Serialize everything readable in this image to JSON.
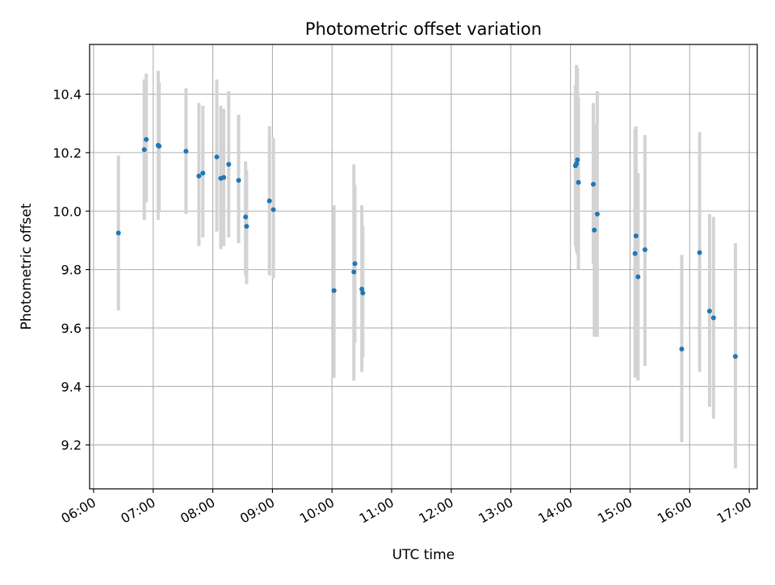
{
  "colors": {
    "point": "#1f77b4",
    "errorbar": "#d3d3d3",
    "grid": "#b0b0b0",
    "axis": "#000000"
  },
  "chart_data": {
    "type": "scatter",
    "title": "Photometric offset variation",
    "xlabel": "UTC time",
    "ylabel": "Photometric offset",
    "x_type": "time",
    "xlim": [
      "05:56",
      "17:08"
    ],
    "ylim": [
      9.05,
      10.57
    ],
    "x_ticks": [
      "06:00",
      "07:00",
      "08:00",
      "09:00",
      "10:00",
      "11:00",
      "12:00",
      "13:00",
      "14:00",
      "15:00",
      "16:00",
      "17:00"
    ],
    "y_ticks": [
      "9.2",
      "9.4",
      "9.6",
      "9.8",
      "10.0",
      "10.2",
      "10.4"
    ],
    "grid": true,
    "series": [
      {
        "marker": "point",
        "error_bars": "vertical",
        "points": [
          {
            "x": "06:25",
            "y": 9.925,
            "ymin": 9.66,
            "ymax": 10.19
          },
          {
            "x": "06:51",
            "y": 10.21,
            "ymin": 9.97,
            "ymax": 10.45
          },
          {
            "x": "06:53",
            "y": 10.245,
            "ymin": 10.03,
            "ymax": 10.47
          },
          {
            "x": "07:05",
            "y": 10.225,
            "ymin": 9.97,
            "ymax": 10.48
          },
          {
            "x": "07:06",
            "y": 10.222,
            "ymin": 10.0,
            "ymax": 10.44
          },
          {
            "x": "07:33",
            "y": 10.205,
            "ymin": 9.99,
            "ymax": 10.42
          },
          {
            "x": "07:46",
            "y": 10.12,
            "ymin": 9.88,
            "ymax": 10.37
          },
          {
            "x": "07:50",
            "y": 10.13,
            "ymin": 9.91,
            "ymax": 10.36
          },
          {
            "x": "08:04",
            "y": 10.185,
            "ymin": 9.93,
            "ymax": 10.45
          },
          {
            "x": "08:08",
            "y": 10.112,
            "ymin": 9.87,
            "ymax": 10.36
          },
          {
            "x": "08:11",
            "y": 10.115,
            "ymin": 9.88,
            "ymax": 10.35
          },
          {
            "x": "08:16",
            "y": 10.16,
            "ymin": 9.91,
            "ymax": 10.41
          },
          {
            "x": "08:26",
            "y": 10.105,
            "ymin": 9.89,
            "ymax": 10.33
          },
          {
            "x": "08:33",
            "y": 9.98,
            "ymin": 9.78,
            "ymax": 10.17
          },
          {
            "x": "08:34",
            "y": 9.948,
            "ymin": 9.75,
            "ymax": 10.14
          },
          {
            "x": "08:57",
            "y": 10.035,
            "ymin": 9.78,
            "ymax": 10.29
          },
          {
            "x": "09:01",
            "y": 10.005,
            "ymin": 9.77,
            "ymax": 10.25
          },
          {
            "x": "10:02",
            "y": 9.728,
            "ymin": 9.43,
            "ymax": 10.02
          },
          {
            "x": "10:22",
            "y": 9.792,
            "ymin": 9.42,
            "ymax": 10.16
          },
          {
            "x": "10:23",
            "y": 9.82,
            "ymin": 9.55,
            "ymax": 10.09
          },
          {
            "x": "10:30",
            "y": 9.733,
            "ymin": 9.45,
            "ymax": 10.02
          },
          {
            "x": "10:31",
            "y": 9.72,
            "ymin": 9.5,
            "ymax": 9.95
          },
          {
            "x": "14:05",
            "y": 10.155,
            "ymin": 9.88,
            "ymax": 10.43
          },
          {
            "x": "14:06",
            "y": 10.162,
            "ymin": 9.86,
            "ymax": 10.5
          },
          {
            "x": "14:07",
            "y": 10.175,
            "ymin": 9.85,
            "ymax": 10.49
          },
          {
            "x": "14:08",
            "y": 10.098,
            "ymin": 9.8,
            "ymax": 10.39
          },
          {
            "x": "14:23",
            "y": 10.092,
            "ymin": 9.82,
            "ymax": 10.37
          },
          {
            "x": "14:24",
            "y": 9.935,
            "ymin": 9.57,
            "ymax": 10.3
          },
          {
            "x": "14:27",
            "y": 9.99,
            "ymin": 9.57,
            "ymax": 10.41
          },
          {
            "x": "15:05",
            "y": 9.855,
            "ymin": 9.43,
            "ymax": 10.28
          },
          {
            "x": "15:06",
            "y": 9.915,
            "ymin": 9.53,
            "ymax": 10.29
          },
          {
            "x": "15:08",
            "y": 9.775,
            "ymin": 9.42,
            "ymax": 10.13
          },
          {
            "x": "15:15",
            "y": 9.868,
            "ymin": 9.47,
            "ymax": 10.26
          },
          {
            "x": "15:52",
            "y": 9.528,
            "ymin": 9.21,
            "ymax": 9.85
          },
          {
            "x": "16:10",
            "y": 9.858,
            "ymin": 9.45,
            "ymax": 10.27
          },
          {
            "x": "16:20",
            "y": 9.658,
            "ymin": 9.33,
            "ymax": 9.99
          },
          {
            "x": "16:24",
            "y": 9.635,
            "ymin": 9.29,
            "ymax": 9.98
          },
          {
            "x": "16:46",
            "y": 9.503,
            "ymin": 9.12,
            "ymax": 9.89
          }
        ]
      }
    ]
  }
}
